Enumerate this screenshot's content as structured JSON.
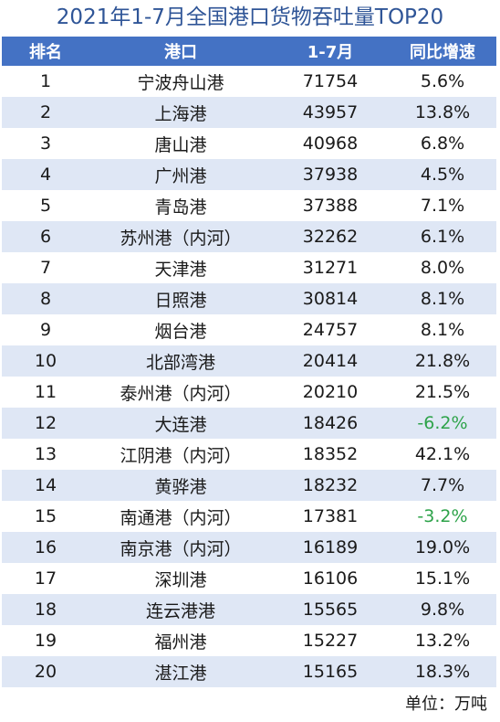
{
  "title": "2021年1-7月全国港口货物吞吐量TOP20",
  "headers": [
    "排名",
    "港口",
    "1-7月",
    "同比增速"
  ],
  "rows": [
    {
      "rank": "1",
      "port": "宁波舟山港",
      "volume": "71754",
      "growth": "5.6%"
    },
    {
      "rank": "2",
      "port": "上海港",
      "volume": "43957",
      "growth": "13.8%"
    },
    {
      "rank": "3",
      "port": "唐山港",
      "volume": "40968",
      "growth": "6.8%"
    },
    {
      "rank": "4",
      "port": "广州港",
      "volume": "37938",
      "growth": "4.5%"
    },
    {
      "rank": "5",
      "port": "青岛港",
      "volume": "37388",
      "growth": "7.1%"
    },
    {
      "rank": "6",
      "port": "苏州港（内河）",
      "volume": "32262",
      "growth": "6.1%"
    },
    {
      "rank": "7",
      "port": "天津港",
      "volume": "31271",
      "growth": "8.0%"
    },
    {
      "rank": "8",
      "port": "日照港",
      "volume": "30814",
      "growth": "8.1%"
    },
    {
      "rank": "9",
      "port": "烟台港",
      "volume": "24757",
      "growth": "8.1%"
    },
    {
      "rank": "10",
      "port": "北部湾港",
      "volume": "20414",
      "growth": "21.8%"
    },
    {
      "rank": "11",
      "port": "泰州港（内河）",
      "volume": "20210",
      "growth": "21.5%"
    },
    {
      "rank": "12",
      "port": "大连港",
      "volume": "18426",
      "growth": "-6.2%"
    },
    {
      "rank": "13",
      "port": "江阴港（内河）",
      "volume": "18352",
      "growth": "42.1%"
    },
    {
      "rank": "14",
      "port": "黄骅港",
      "volume": "18232",
      "growth": "7.7%"
    },
    {
      "rank": "15",
      "port": "南通港（内河）",
      "volume": "17381",
      "growth": "-3.2%"
    },
    {
      "rank": "16",
      "port": "南京港（内河）",
      "volume": "16189",
      "growth": "19.0%"
    },
    {
      "rank": "17",
      "port": "深圳港",
      "volume": "16106",
      "growth": "15.1%"
    },
    {
      "rank": "18",
      "port": "连云港港",
      "volume": "15565",
      "growth": "9.8%"
    },
    {
      "rank": "19",
      "port": "福州港",
      "volume": "15227",
      "growth": "13.2%"
    },
    {
      "rank": "20",
      "port": "湛江港",
      "volume": "15165",
      "growth": "18.3%"
    }
  ],
  "unit": "单位：万吨",
  "colors": {
    "title": "#2f5597",
    "header_bg": "#4472c4",
    "stripe": "#dfe7f5",
    "negative": "#2ea34a"
  }
}
